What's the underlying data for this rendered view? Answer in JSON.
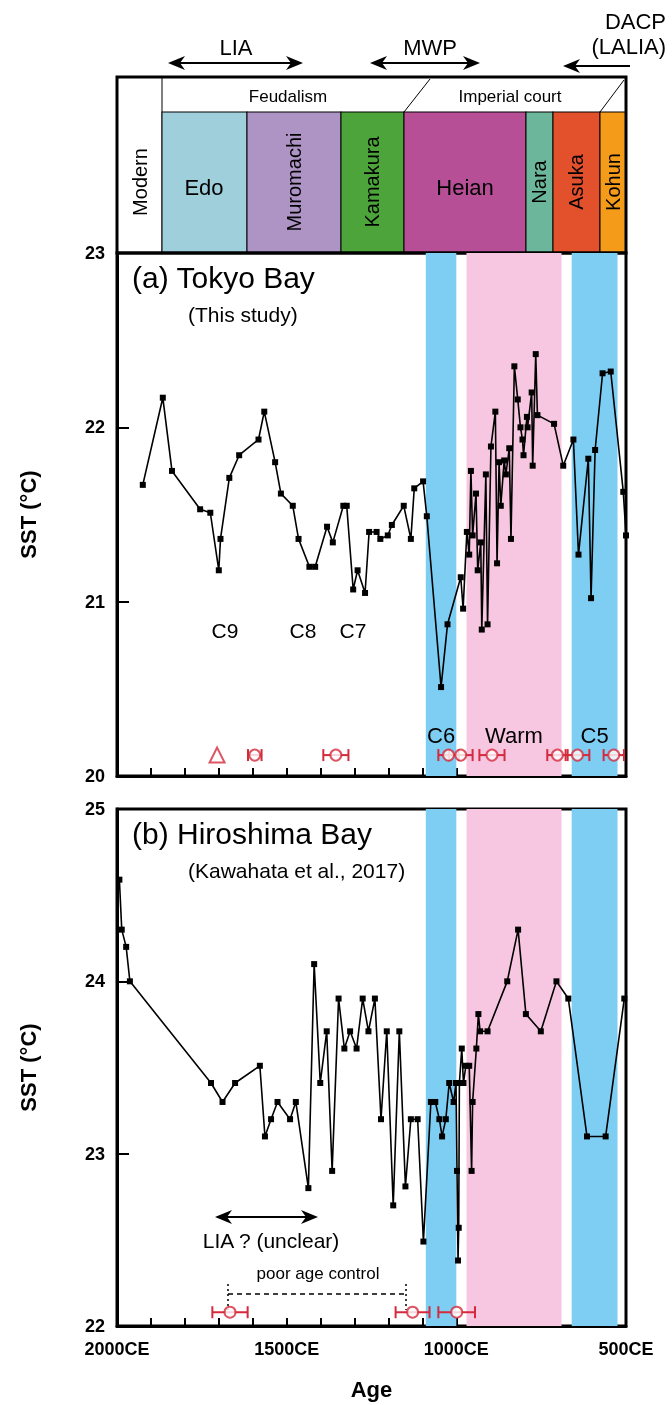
{
  "chart_data": [
    {
      "type": "other",
      "annotations": [
        "Modern",
        "Edo",
        "Muromachi",
        "Kamakura",
        "Heian",
        "Nara",
        "Asuka",
        "Kohun",
        "Feudalism",
        "Imperial court",
        "LIA",
        "MWP",
        "DACP (LALIA)"
      ]
    },
    {
      "type": "line",
      "title": "(a) Tokyo Bay",
      "subtitle": "(This study)",
      "ylabel": "SST (°C)",
      "xlim": [
        2000,
        500
      ],
      "xticks": [
        {
          "value": 2000,
          "label": null
        },
        {
          "value": 1900,
          "label": null
        },
        {
          "value": 1800,
          "label": null
        },
        {
          "value": 1700,
          "label": null
        },
        {
          "value": 1600,
          "label": null
        },
        {
          "value": 1500,
          "label": null
        },
        {
          "value": 1400,
          "label": null
        },
        {
          "value": 1300,
          "label": null
        },
        {
          "value": 1200,
          "label": null
        },
        {
          "value": 1100,
          "label": null
        },
        {
          "value": 1000,
          "label": null
        },
        {
          "value": 900,
          "label": null
        },
        {
          "value": 800,
          "label": null
        },
        {
          "value": 700,
          "label": null
        },
        {
          "value": 600,
          "label": null
        },
        {
          "value": 500,
          "label": null
        }
      ],
      "ylim": [
        20,
        23
      ],
      "yticks": [
        20,
        21,
        22,
        23
      ],
      "tick_labels": "y",
      "series": [
        {
          "type": "line",
          "color": "#000000",
          "marker": "square",
          "x": [
            1924,
            1865,
            1838,
            1755,
            1725,
            1700,
            1695,
            1669,
            1640,
            1583,
            1566,
            1534,
            1517,
            1482,
            1465,
            1433,
            1416,
            1381,
            1364,
            1333,
            1323,
            1304,
            1291,
            1269,
            1257,
            1235,
            1224,
            1202,
            1190,
            1155,
            1134,
            1124,
            1098,
            1087,
            1045,
            1026,
            987,
            980,
            969,
            962,
            957,
            952,
            942,
            937,
            928,
            925,
            913,
            908,
            898,
            885,
            880,
            874,
            869,
            859,
            854,
            844,
            839,
            829,
            819,
            811,
            805,
            802,
            792,
            790,
            778,
            775,
            766,
            761,
            712,
            685,
            655,
            640,
            611,
            603,
            591,
            569,
            545,
            508,
            500
          ],
          "values": [
            21.67,
            22.17,
            21.75,
            21.53,
            21.51,
            21.18,
            21.36,
            21.71,
            21.84,
            21.93,
            22.09,
            21.8,
            21.62,
            21.55,
            21.36,
            21.2,
            21.2,
            21.43,
            21.34,
            21.55,
            21.55,
            21.07,
            21.18,
            21.05,
            21.4,
            21.4,
            21.36,
            21.38,
            21.44,
            21.55,
            21.36,
            21.65,
            21.69,
            21.49,
            20.51,
            20.87,
            21.14,
            20.96,
            21.4,
            21.27,
            21.75,
            21.38,
            21.62,
            21.18,
            21.34,
            20.84,
            21.73,
            20.87,
            21.89,
            22.09,
            21.22,
            21.8,
            21.55,
            21.81,
            21.73,
            21.88,
            21.36,
            22.35,
            22.16,
            22.0,
            21.93,
            21.84,
            22.06,
            22.0,
            22.2,
            21.78,
            22.42,
            22.07,
            22.02,
            21.78,
            21.93,
            21.27,
            21.82,
            21.02,
            21.87,
            22.31,
            22.32,
            21.63,
            21.38
          ]
        },
        {
          "type": "scatter",
          "color": "#d42a3c",
          "marker": "circle",
          "x": [
            1594,
            1355,
            1023,
            987,
            895,
            702,
            643,
            536
          ],
          "values": [
            20.12,
            20.12,
            20.12,
            20.12,
            20.12,
            20.12,
            20.12,
            20.12
          ],
          "xerrors": [
            20,
            37,
            30,
            35,
            37,
            30,
            35,
            30
          ]
        },
        {
          "type": "scatter",
          "color": "#d42a3c",
          "marker": "triangle",
          "x": [
            1705
          ],
          "values": [
            20.12
          ]
        }
      ],
      "bands": [
        {
          "axis": "x",
          "from": 1090,
          "to": 1000,
          "label": "C6",
          "color": "#7ecef4"
        },
        {
          "axis": "x",
          "from": 970,
          "to": 690,
          "label": "Warm",
          "color": "#f7c6e0"
        },
        {
          "axis": "x",
          "from": 660,
          "to": 525,
          "label": "C5",
          "color": "#7ecef4"
        }
      ],
      "annotations": [
        "C9",
        "C8",
        "C7"
      ]
    },
    {
      "type": "line",
      "title": "(b) Hiroshima Bay",
      "subtitle": "(Kawahata et al., 2017)",
      "xlabel": "Age",
      "ylabel": "SST (°C)",
      "xlim": [
        2000,
        500
      ],
      "xticks": [
        {
          "value": 2000,
          "label": "2000CE"
        },
        {
          "value": 1900,
          "label": null
        },
        {
          "value": 1800,
          "label": null
        },
        {
          "value": 1700,
          "label": null
        },
        {
          "value": 1600,
          "label": null
        },
        {
          "value": 1500,
          "label": "1500CE"
        },
        {
          "value": 1400,
          "label": null
        },
        {
          "value": 1300,
          "label": null
        },
        {
          "value": 1200,
          "label": null
        },
        {
          "value": 1100,
          "label": null
        },
        {
          "value": 1000,
          "label": "1000CE"
        },
        {
          "value": 900,
          "label": null
        },
        {
          "value": 800,
          "label": null
        },
        {
          "value": 700,
          "label": null
        },
        {
          "value": 600,
          "label": null
        },
        {
          "value": 500,
          "label": "500CE"
        }
      ],
      "ylim": [
        22,
        25
      ],
      "yticks": [
        22,
        23,
        24,
        25
      ],
      "series": [
        {
          "type": "line",
          "color": "#000000",
          "marker": "square",
          "x": [
            1993,
            1986,
            1973,
            1962,
            1723,
            1689,
            1652,
            1579,
            1564,
            1546,
            1527,
            1490,
            1473,
            1436,
            1419,
            1401,
            1382,
            1366,
            1347,
            1330,
            1313,
            1294,
            1276,
            1259,
            1240,
            1222,
            1205,
            1186,
            1168,
            1150,
            1134,
            1114,
            1097,
            1075,
            1062,
            1050,
            1042,
            1031,
            1021,
            1008,
            1001,
            998,
            995,
            993,
            991,
            984,
            979,
            972,
            962,
            955,
            952,
            941,
            935,
            930,
            908,
            850,
            818,
            795,
            751,
            705,
            670,
            615,
            560,
            505
          ],
          "values": [
            24.59,
            24.3,
            24.2,
            24.0,
            23.41,
            23.3,
            23.41,
            23.51,
            23.1,
            23.2,
            23.3,
            23.2,
            23.3,
            22.8,
            24.1,
            23.41,
            23.71,
            22.9,
            23.9,
            23.61,
            23.71,
            23.61,
            23.9,
            23.71,
            23.9,
            23.2,
            23.71,
            22.7,
            23.71,
            22.81,
            23.2,
            23.2,
            22.49,
            23.3,
            23.3,
            23.2,
            23.1,
            23.2,
            23.41,
            23.3,
            23.41,
            22.9,
            22.38,
            22.57,
            23.41,
            23.61,
            23.41,
            23.51,
            23.51,
            22.9,
            23.3,
            23.61,
            23.81,
            23.71,
            23.71,
            24.0,
            24.3,
            23.81,
            23.71,
            24.0,
            23.9,
            23.1,
            23.1,
            23.9
          ]
        },
        {
          "type": "scatter",
          "color": "#d42a3c",
          "marker": "circle",
          "x": [
            1667,
            1129,
            999
          ],
          "values": [
            22.08,
            22.08,
            22.08
          ],
          "xerrors": [
            52,
            50,
            54
          ]
        }
      ],
      "bands": [
        {
          "axis": "x",
          "from": 1090,
          "to": 1000,
          "color": "#7ecef4"
        },
        {
          "axis": "x",
          "from": 970,
          "to": 690,
          "color": "#f7c6e0"
        },
        {
          "axis": "x",
          "from": 660,
          "to": 525,
          "color": "#7ecef4"
        }
      ],
      "annotations": [
        "LIA ? (unclear)",
        "poor age control"
      ]
    }
  ]
}
